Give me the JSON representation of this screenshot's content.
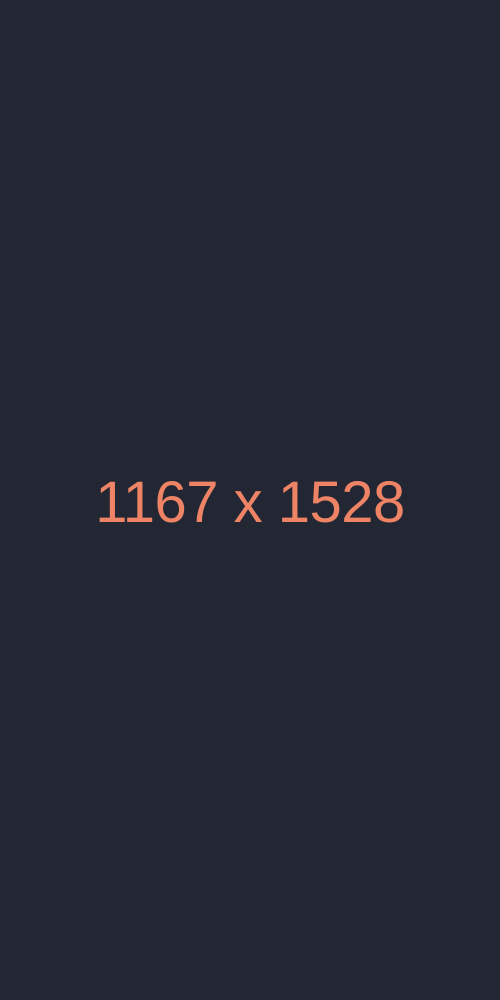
{
  "placeholder": {
    "label": "1167 x 1528"
  },
  "colors": {
    "background": "#222733",
    "text": "#ee8465"
  }
}
